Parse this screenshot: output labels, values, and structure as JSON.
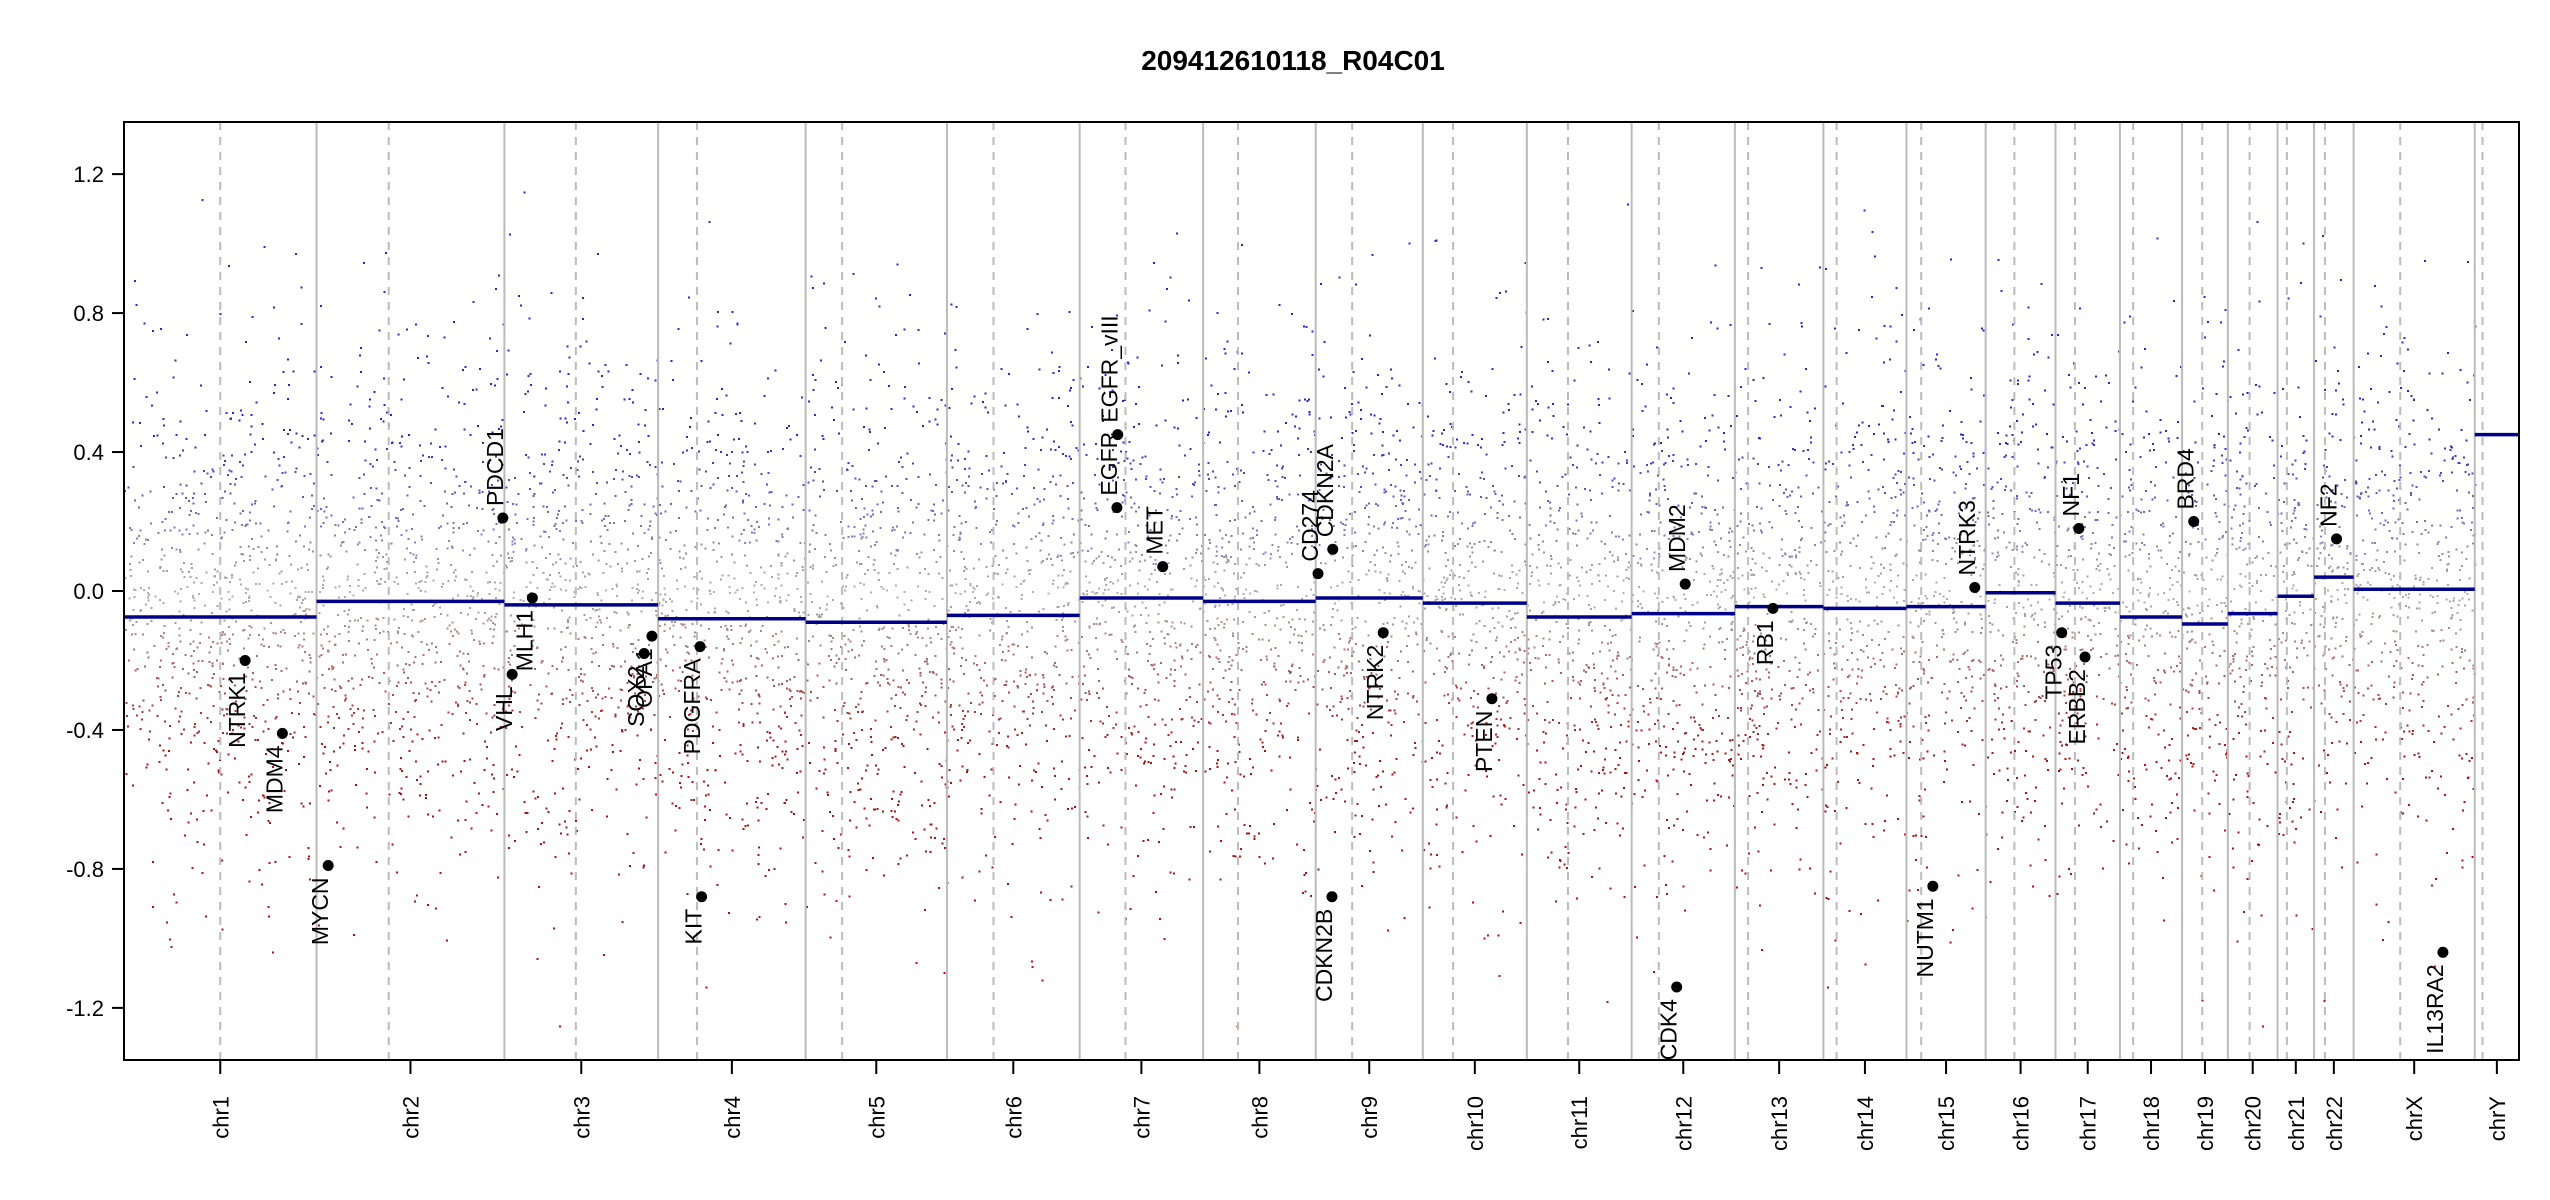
{
  "chart_data": {
    "type": "scatter",
    "title": "209412610118_R04C01",
    "xlabel": "",
    "ylabel": "",
    "ylim": [
      -1.35,
      1.35
    ],
    "y_ticks": [
      {
        "value": 1.2,
        "label": "1.2"
      },
      {
        "value": 0.8,
        "label": "0.8"
      },
      {
        "value": 0.4,
        "label": "0.4"
      },
      {
        "value": 0.0,
        "label": "0.0"
      },
      {
        "value": -0.4,
        "label": "-0.4"
      },
      {
        "value": -0.8,
        "label": "-0.8"
      },
      {
        "value": -1.2,
        "label": "-1.2"
      }
    ],
    "grid": false,
    "colors": {
      "gain": "#3b3bc8",
      "loss": "#a81e1e",
      "neutral": "#b0b0b0",
      "segment": "#00008b",
      "gene_point": "#000000",
      "chr_boundary": "#bbbbbb",
      "centromere": "#bbbbbb",
      "axis": "#000000"
    },
    "chromosomes": [
      {
        "name": "chr1",
        "start": 0,
        "end": 248,
        "centromere": 124,
        "segment": -0.075
      },
      {
        "name": "chr2",
        "start": 248,
        "end": 490,
        "centromere": 341,
        "segment": -0.03
      },
      {
        "name": "chr3",
        "start": 490,
        "end": 688,
        "centromere": 582,
        "segment": -0.04
      },
      {
        "name": "chr4",
        "start": 688,
        "end": 878,
        "centromere": 738,
        "segment": -0.08
      },
      {
        "name": "chr5",
        "start": 878,
        "end": 1060,
        "centromere": 925,
        "segment": -0.09
      },
      {
        "name": "chr6",
        "start": 1060,
        "end": 1231,
        "centromere": 1120,
        "segment": -0.07
      },
      {
        "name": "chr7",
        "start": 1231,
        "end": 1390,
        "centromere": 1290,
        "segment": -0.02
      },
      {
        "name": "chr8",
        "start": 1390,
        "end": 1535,
        "centromere": 1435,
        "segment": -0.03
      },
      {
        "name": "chr9",
        "start": 1535,
        "end": 1673,
        "centromere": 1582,
        "segment": -0.02
      },
      {
        "name": "chr10",
        "start": 1673,
        "end": 1807,
        "centromere": 1712,
        "segment": -0.035
      },
      {
        "name": "chr11",
        "start": 1807,
        "end": 1942,
        "centromere": 1860,
        "segment": -0.075
      },
      {
        "name": "chr12",
        "start": 1942,
        "end": 2075,
        "centromere": 1977,
        "segment": -0.065
      },
      {
        "name": "chr13",
        "start": 2075,
        "end": 2189,
        "centromere": 2092,
        "segment": -0.045
      },
      {
        "name": "chr14",
        "start": 2189,
        "end": 2296,
        "centromere": 2206,
        "segment": -0.05
      },
      {
        "name": "chr15",
        "start": 2296,
        "end": 2398,
        "centromere": 2315,
        "segment": -0.045
      },
      {
        "name": "chr16",
        "start": 2398,
        "end": 2488,
        "centromere": 2435,
        "segment": -0.005
      },
      {
        "name": "chr17",
        "start": 2488,
        "end": 2571,
        "centromere": 2513,
        "segment": -0.035
      },
      {
        "name": "chr18",
        "start": 2571,
        "end": 2651,
        "centromere": 2588,
        "segment": -0.075
      },
      {
        "name": "chr19",
        "start": 2651,
        "end": 2710,
        "centromere": 2677,
        "segment": -0.095
      },
      {
        "name": "chr20",
        "start": 2710,
        "end": 2774,
        "centromere": 2738,
        "segment": -0.065
      },
      {
        "name": "chr21",
        "start": 2774,
        "end": 2821,
        "centromere": 2786,
        "segment": -0.015
      },
      {
        "name": "chr22",
        "start": 2821,
        "end": 2872,
        "centromere": 2835,
        "segment": 0.04
      },
      {
        "name": "chrX",
        "start": 2872,
        "end": 3028,
        "centromere": 2932,
        "segment": 0.005
      },
      {
        "name": "chrY",
        "start": 3028,
        "end": 3085,
        "centromere": 3038,
        "segment": 0.45
      }
    ],
    "genes": [
      {
        "name": "NTRK1",
        "x": 156,
        "y": -0.2
      },
      {
        "name": "MDM4",
        "x": 204,
        "y": -0.41
      },
      {
        "name": "MYCN",
        "x": 263,
        "y": -0.79
      },
      {
        "name": "PDCD1",
        "x": 488,
        "y": 0.21
      },
      {
        "name": "VHL",
        "x": 500,
        "y": -0.24
      },
      {
        "name": "MLH1",
        "x": 526,
        "y": -0.02
      },
      {
        "name": "SOX2",
        "x": 670,
        "y": -0.18
      },
      {
        "name": "OPA1",
        "x": 680,
        "y": -0.13
      },
      {
        "name": "PDGFRA",
        "x": 742,
        "y": -0.16
      },
      {
        "name": "KIT",
        "x": 744,
        "y": -0.88
      },
      {
        "name": "EGFR",
        "x": 1279,
        "y": 0.24
      },
      {
        "name": "EGFR_vIII",
        "x": 1280,
        "y": 0.45
      },
      {
        "name": "MET",
        "x": 1338,
        "y": 0.07
      },
      {
        "name": "CD274",
        "x": 1538,
        "y": 0.05
      },
      {
        "name": "CDKN2A",
        "x": 1557,
        "y": 0.12
      },
      {
        "name": "CDKN2B",
        "x": 1556,
        "y": -0.88
      },
      {
        "name": "NTRK2",
        "x": 1622,
        "y": -0.12
      },
      {
        "name": "PTEN",
        "x": 1762,
        "y": -0.31
      },
      {
        "name": "CDK4",
        "x": 2000,
        "y": -1.14
      },
      {
        "name": "MDM2",
        "x": 2011,
        "y": 0.02
      },
      {
        "name": "RB1",
        "x": 2124,
        "y": -0.05
      },
      {
        "name": "NUTM1",
        "x": 2330,
        "y": -0.85
      },
      {
        "name": "NTRK3",
        "x": 2384,
        "y": 0.01
      },
      {
        "name": "TP53",
        "x": 2496,
        "y": -0.12
      },
      {
        "name": "NF1",
        "x": 2518,
        "y": 0.18
      },
      {
        "name": "ERBB2",
        "x": 2526,
        "y": -0.19
      },
      {
        "name": "BRD4",
        "x": 2666,
        "y": 0.2
      },
      {
        "name": "NF2",
        "x": 2850,
        "y": 0.15
      },
      {
        "name": "IL13RA2",
        "x": 2987,
        "y": -1.04
      }
    ]
  }
}
